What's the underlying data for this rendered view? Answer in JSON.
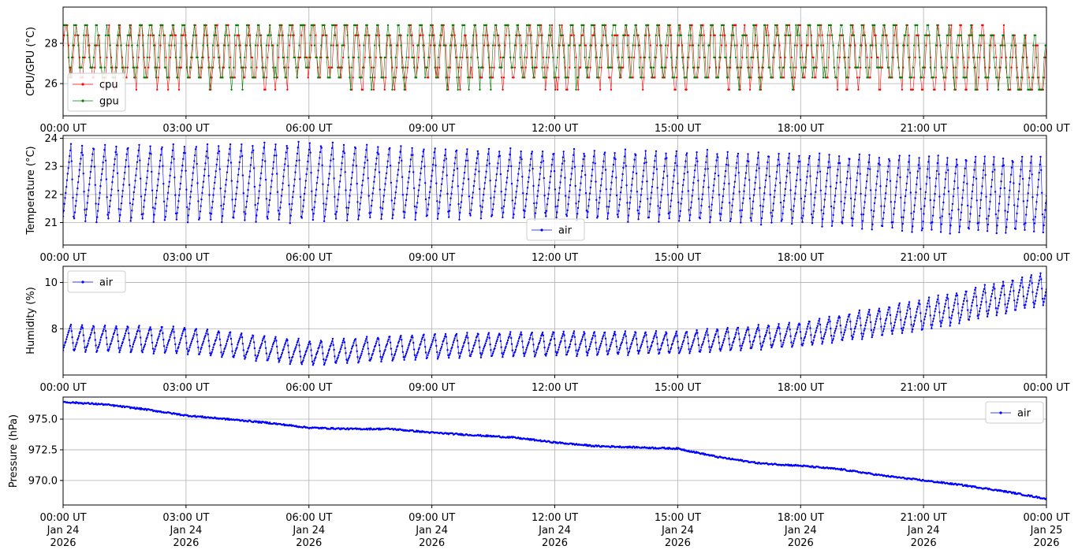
{
  "colors": {
    "cpu": "#ff0000",
    "gpu": "#008000",
    "air": "#0000ff",
    "grid": "#b0b0b0",
    "axes": "#000000"
  },
  "x_axis": {
    "start": "2026-01-24T00:00Z",
    "end": "2026-01-25T00:00Z",
    "tick_times": [
      "00:00 UT",
      "03:00 UT",
      "06:00 UT",
      "09:00 UT",
      "12:00 UT",
      "15:00 UT",
      "18:00 UT",
      "21:00 UT",
      "00:00 UT"
    ],
    "tick_days": [
      "Jan 24",
      "Jan 24",
      "Jan 24",
      "Jan 24",
      "Jan 24",
      "Jan 24",
      "Jan 24",
      "Jan 24",
      "Jan 25"
    ],
    "tick_years": [
      "2026",
      "2026",
      "2026",
      "2026",
      "2026",
      "2026",
      "2026",
      "2026",
      "2026"
    ]
  },
  "chart_data": [
    {
      "type": "line",
      "ylabel": "CPU/GPU (°C)",
      "ylim": [
        24.4,
        29.8
      ],
      "yticks": [
        26,
        28
      ],
      "ytick_labels": [
        "26",
        "28"
      ],
      "grid": true,
      "legend_position": "lower-left",
      "series": [
        {
          "name": "cpu",
          "color": "#ff0000",
          "x": [
            "00:00",
            "01:00",
            "02:00",
            "03:00",
            "04:00",
            "05:00",
            "06:00",
            "07:00",
            "08:00",
            "09:00",
            "10:00",
            "11:00",
            "12:00",
            "13:00",
            "14:00",
            "15:00",
            "16:00",
            "17:00",
            "18:00",
            "19:00",
            "20:00",
            "21:00",
            "22:00",
            "23:00",
            "24:00"
          ],
          "values": [
            27.8,
            27.1,
            27.6,
            27.4,
            27.6,
            27.3,
            27.7,
            27.5,
            27.2,
            27.6,
            27.4,
            27.7,
            27.3,
            27.5,
            27.6,
            27.2,
            27.5,
            27.4,
            27.6,
            27.3,
            27.5,
            27.2,
            27.4,
            27.1,
            26.3
          ]
        },
        {
          "name": "gpu",
          "color": "#008000",
          "x": [
            "00:00",
            "01:00",
            "02:00",
            "03:00",
            "04:00",
            "05:00",
            "06:00",
            "07:00",
            "08:00",
            "09:00",
            "10:00",
            "11:00",
            "12:00",
            "13:00",
            "14:00",
            "15:00",
            "16:00",
            "17:00",
            "18:00",
            "19:00",
            "20:00",
            "21:00",
            "22:00",
            "23:00",
            "24:00"
          ],
          "values": [
            28.3,
            27.4,
            27.8,
            27.6,
            27.5,
            27.6,
            27.9,
            27.7,
            27.4,
            27.8,
            27.6,
            27.9,
            27.5,
            27.7,
            27.8,
            27.4,
            27.6,
            27.5,
            27.7,
            27.6,
            27.8,
            27.4,
            27.5,
            27.3,
            26.3
          ]
        }
      ]
    },
    {
      "type": "line",
      "ylabel": "Temperature (°C)",
      "ylim": [
        20.2,
        24.1
      ],
      "yticks": [
        21,
        22,
        23,
        24
      ],
      "ytick_labels": [
        "21",
        "22",
        "23",
        "24"
      ],
      "grid": true,
      "legend_position": "lower-center",
      "oscillation": {
        "x": [
          "00:00",
          "03:00",
          "06:00",
          "09:00",
          "12:00",
          "15:00",
          "18:00",
          "21:00",
          "24:00"
        ],
        "upper": [
          23.8,
          23.8,
          23.9,
          23.7,
          23.6,
          23.6,
          23.5,
          23.4,
          23.4
        ],
        "lower": [
          21.0,
          21.0,
          21.0,
          21.1,
          21.1,
          21.0,
          20.9,
          20.6,
          20.6
        ],
        "cycles_per_hour": [
          3.6,
          3.6,
          3.6,
          3.8,
          4.0,
          4.0,
          4.1,
          4.4
        ]
      },
      "series": [
        {
          "name": "air",
          "color": "#0000ff"
        }
      ]
    },
    {
      "type": "line",
      "ylabel": "Humidity (%)",
      "ylim": [
        6.0,
        10.7
      ],
      "yticks": [
        8,
        10
      ],
      "ytick_labels": [
        "8",
        "10"
      ],
      "grid": true,
      "legend_position": "top-left",
      "oscillation": {
        "x": [
          "00:00",
          "03:00",
          "06:00",
          "09:00",
          "12:00",
          "15:00",
          "18:00",
          "21:00",
          "24:00"
        ],
        "upper": [
          8.2,
          8.1,
          7.5,
          7.8,
          7.9,
          7.9,
          8.3,
          9.3,
          10.5
        ],
        "lower": [
          7.0,
          6.9,
          6.4,
          6.7,
          6.8,
          6.9,
          7.2,
          7.9,
          9.0
        ],
        "cycles_per_hour": [
          3.6,
          3.6,
          3.6,
          3.8,
          4.0,
          4.0,
          4.1,
          4.4
        ]
      },
      "series": [
        {
          "name": "air",
          "color": "#0000ff"
        }
      ]
    },
    {
      "type": "line",
      "ylabel": "Pressure (hPa)",
      "ylim": [
        968.0,
        976.8
      ],
      "yticks": [
        970.0,
        972.5,
        975.0
      ],
      "ytick_labels": [
        "970.0",
        "972.5",
        "975.0"
      ],
      "grid": true,
      "legend_position": "top-right",
      "series": [
        {
          "name": "air",
          "color": "#0000ff",
          "x": [
            "00:00",
            "01:00",
            "02:00",
            "03:00",
            "04:00",
            "05:00",
            "06:00",
            "07:00",
            "08:00",
            "09:00",
            "10:00",
            "11:00",
            "12:00",
            "13:00",
            "14:00",
            "15:00",
            "16:00",
            "17:00",
            "18:00",
            "19:00",
            "20:00",
            "21:00",
            "22:00",
            "23:00",
            "24:00"
          ],
          "values": [
            976.4,
            976.2,
            975.8,
            975.3,
            975.0,
            974.7,
            974.3,
            974.2,
            974.2,
            973.9,
            973.7,
            973.5,
            973.1,
            972.8,
            972.7,
            972.6,
            971.9,
            971.4,
            971.2,
            970.9,
            970.4,
            970.0,
            969.6,
            969.1,
            968.5
          ]
        }
      ]
    }
  ]
}
